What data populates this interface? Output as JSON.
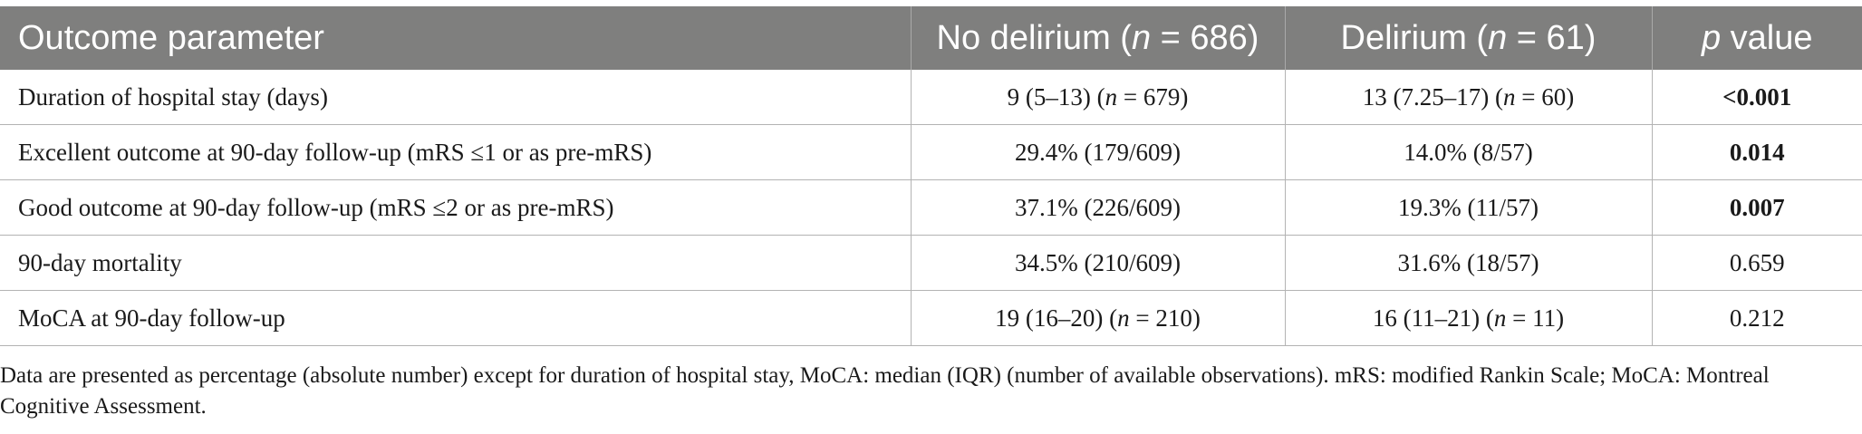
{
  "table": {
    "headers": {
      "outcome": "Outcome parameter",
      "no_delirium_prefix": "No delirium (",
      "no_delirium_n": "n",
      "no_delirium_suffix": " = 686)",
      "delirium_prefix": "Delirium (",
      "delirium_n": "n",
      "delirium_suffix": " = 61)",
      "p_italic": "p",
      "p_suffix": " value"
    },
    "rows": [
      {
        "parameter": "Duration of hospital stay (days)",
        "no_delirium": {
          "text": "9 (5–13) (",
          "n": "n",
          "tail": " = 679)"
        },
        "delirium": {
          "text": "13 (7.25–17) (",
          "n": "n",
          "tail": " = 60)"
        },
        "p_value": "<0.001",
        "p_bold": true
      },
      {
        "parameter": "Excellent outcome at 90-day follow-up (mRS ≤1 or as pre-mRS)",
        "no_delirium": {
          "text": "29.4% (179/609)"
        },
        "delirium": {
          "text": "14.0% (8/57)"
        },
        "p_value": "0.014",
        "p_bold": true
      },
      {
        "parameter": "Good outcome at 90-day follow-up (mRS ≤2 or as pre-mRS)",
        "no_delirium": {
          "text": "37.1% (226/609)"
        },
        "delirium": {
          "text": "19.3% (11/57)"
        },
        "p_value": "0.007",
        "p_bold": true
      },
      {
        "parameter": "90-day mortality",
        "no_delirium": {
          "text": "34.5% (210/609)"
        },
        "delirium": {
          "text": "31.6% (18/57)"
        },
        "p_value": "0.659",
        "p_bold": false
      },
      {
        "parameter": "MoCA at 90-day follow-up",
        "no_delirium": {
          "text": "19 (16–20) (",
          "n": "n",
          "tail": " = 210)"
        },
        "delirium": {
          "text": "16 (11–21) (",
          "n": "n",
          "tail": " = 11)"
        },
        "p_value": "0.212",
        "p_bold": false
      }
    ]
  },
  "footnote": "Data are presented as percentage (absolute number) except for duration of hospital stay, MoCA: median (IQR) (number of available observations). mRS: modified Rankin Scale; MoCA: Montreal Cognitive Assessment."
}
